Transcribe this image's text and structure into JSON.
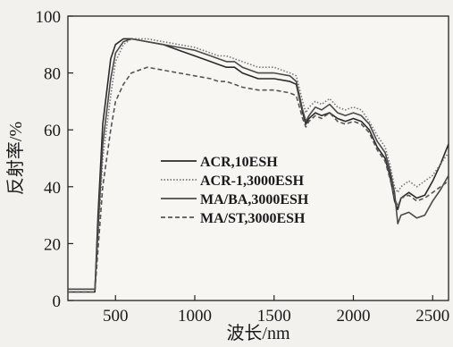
{
  "chart_data": {
    "type": "line",
    "title": "",
    "xlabel": "波长/nm",
    "ylabel": "反射率/%",
    "xlim": [
      200,
      2600
    ],
    "ylim": [
      0,
      100
    ],
    "xticks": [
      "500",
      "1000",
      "1500",
      "2000",
      "2500"
    ],
    "yticks": [
      "0",
      "20",
      "40",
      "60",
      "80",
      "100"
    ],
    "grid": false,
    "legend_position": "center",
    "series": [
      {
        "name": "ACR,10ESH",
        "style": "solid",
        "color": "#2a2a2a",
        "x": [
          200,
          350,
          370,
          390,
          420,
          470,
          500,
          550,
          600,
          700,
          800,
          900,
          1000,
          1100,
          1150,
          1200,
          1250,
          1300,
          1400,
          1500,
          1600,
          1640,
          1680,
          1700,
          1720,
          1760,
          1800,
          1850,
          1900,
          1950,
          2000,
          2050,
          2100,
          2150,
          2200,
          2230,
          2260,
          2280,
          2300,
          2350,
          2400,
          2450,
          2500,
          2550,
          2600
        ],
        "y": [
          3,
          3,
          3,
          30,
          62,
          85,
          90,
          92,
          92,
          91,
          90,
          88,
          86,
          84,
          83,
          82,
          82,
          80,
          78,
          78,
          77,
          76,
          66,
          62,
          64,
          66,
          65,
          66,
          64,
          63,
          64,
          63,
          60,
          54,
          50,
          44,
          35,
          32,
          36,
          38,
          36,
          37,
          42,
          48,
          55
        ]
      },
      {
        "name": "ACR-1,3000ESH",
        "style": "dotted",
        "color": "#777777",
        "x": [
          200,
          350,
          370,
          390,
          420,
          470,
          500,
          550,
          600,
          700,
          800,
          900,
          1000,
          1100,
          1150,
          1200,
          1250,
          1300,
          1400,
          1500,
          1600,
          1640,
          1680,
          1700,
          1720,
          1760,
          1800,
          1850,
          1900,
          1950,
          2000,
          2050,
          2100,
          2150,
          2200,
          2230,
          2260,
          2280,
          2300,
          2350,
          2400,
          2450,
          2500,
          2550,
          2600
        ],
        "y": [
          4,
          4,
          4,
          22,
          50,
          72,
          84,
          90,
          92,
          92,
          91,
          90,
          89,
          87,
          86,
          86,
          85,
          84,
          82,
          82,
          80,
          79,
          70,
          66,
          68,
          70,
          69,
          71,
          68,
          67,
          68,
          67,
          63,
          58,
          54,
          48,
          40,
          38,
          40,
          42,
          40,
          42,
          44,
          48,
          52
        ]
      },
      {
        "name": "MA/BA,3000ESH",
        "style": "solid",
        "color": "#4a4a4a",
        "x": [
          200,
          350,
          370,
          390,
          420,
          470,
          500,
          550,
          600,
          700,
          800,
          900,
          1000,
          1100,
          1150,
          1200,
          1250,
          1300,
          1400,
          1500,
          1600,
          1640,
          1680,
          1700,
          1720,
          1760,
          1800,
          1850,
          1900,
          1950,
          2000,
          2050,
          2100,
          2150,
          2200,
          2230,
          2260,
          2280,
          2300,
          2350,
          2400,
          2450,
          2500,
          2550,
          2600
        ],
        "y": [
          4,
          4,
          4,
          25,
          55,
          78,
          87,
          91,
          92,
          91,
          90,
          89,
          88,
          86,
          85,
          84,
          84,
          82,
          80,
          80,
          79,
          77,
          67,
          63,
          65,
          68,
          67,
          69,
          66,
          65,
          66,
          65,
          62,
          56,
          52,
          46,
          38,
          27,
          30,
          31,
          29,
          30,
          35,
          39,
          44
        ]
      },
      {
        "name": "MA/ST,3000ESH",
        "style": "dashed",
        "color": "#555555",
        "x": [
          200,
          350,
          370,
          390,
          420,
          470,
          500,
          550,
          600,
          700,
          800,
          900,
          1000,
          1100,
          1150,
          1200,
          1250,
          1300,
          1400,
          1500,
          1600,
          1640,
          1680,
          1700,
          1720,
          1760,
          1800,
          1850,
          1900,
          1950,
          2000,
          2050,
          2100,
          2150,
          2200,
          2230,
          2260,
          2280,
          2300,
          2350,
          2400,
          2450,
          2500,
          2550,
          2600
        ],
        "y": [
          3,
          3,
          3,
          18,
          40,
          60,
          70,
          76,
          80,
          82,
          81,
          80,
          79,
          78,
          77,
          77,
          76,
          75,
          74,
          74,
          73,
          72,
          64,
          61,
          63,
          65,
          64,
          66,
          63,
          62,
          63,
          62,
          59,
          53,
          49,
          43,
          36,
          33,
          36,
          37,
          35,
          36,
          38,
          40,
          42
        ]
      }
    ]
  }
}
